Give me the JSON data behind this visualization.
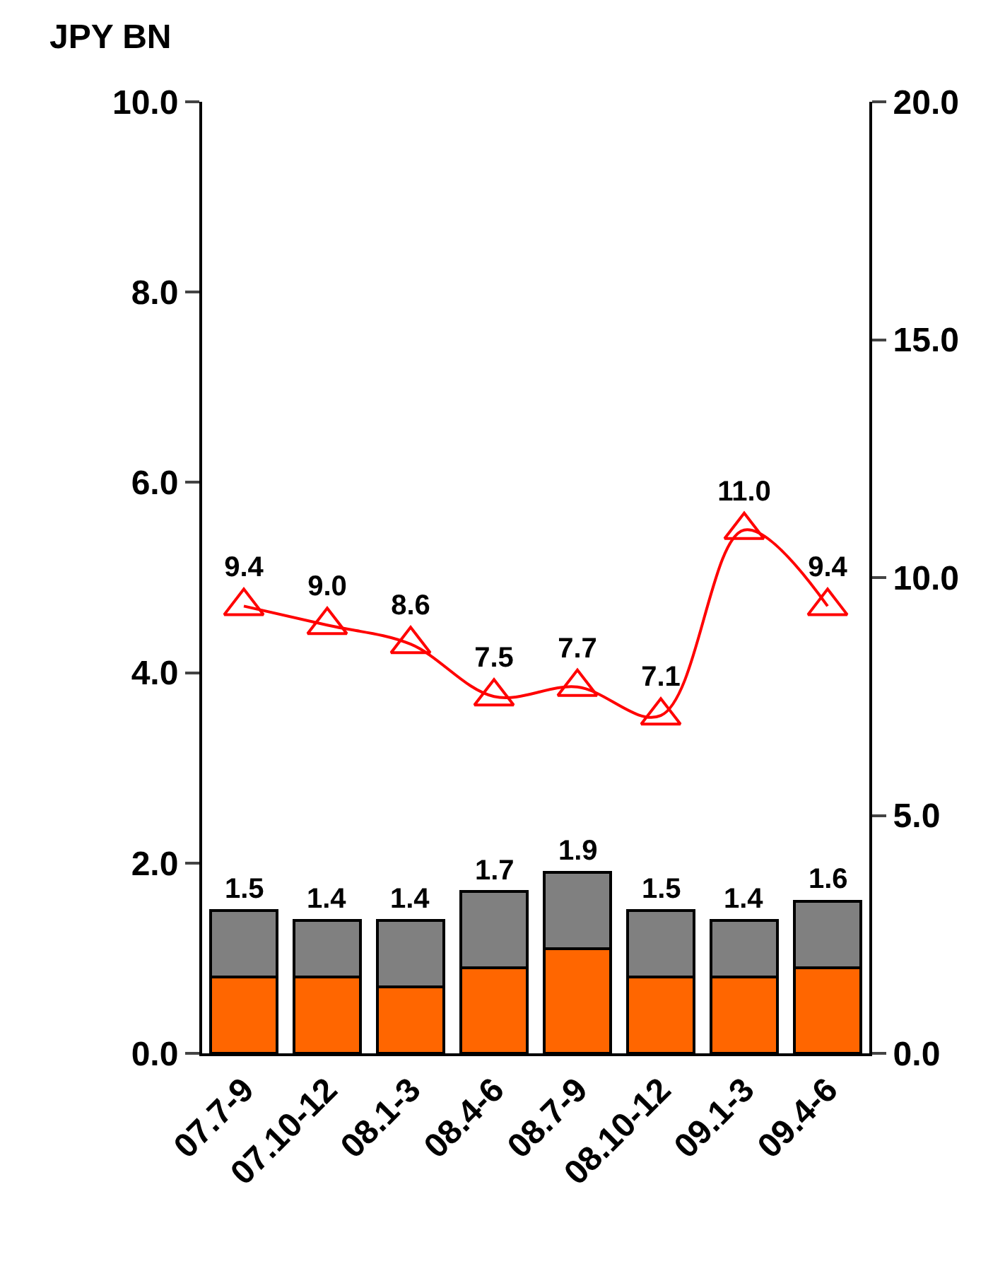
{
  "chart_data": {
    "type": "bar",
    "stacked": true,
    "ylabel": "JPY BN",
    "categories": [
      "07.7-9",
      "07.10-12",
      "08.1-3",
      "08.4-6",
      "08.7-9",
      "08.10-12",
      "09.1-3",
      "09.4-6"
    ],
    "series": [
      {
        "color": "#ff6600",
        "values": [
          0.8,
          0.8,
          0.7,
          0.9,
          1.1,
          0.8,
          0.8,
          0.9
        ]
      },
      {
        "color": "#808080",
        "values": [
          0.7,
          0.6,
          0.7,
          0.8,
          0.8,
          0.7,
          0.6,
          0.7
        ]
      },
      {
        "type": "line",
        "axis": "y2",
        "color": "#ff0000",
        "marker": "triangle",
        "values": [
          9.4,
          9.0,
          8.6,
          7.5,
          7.7,
          7.1,
          11.0,
          9.4
        ],
        "value_labels": [
          "9.4",
          "9.0",
          "8.6",
          "7.5",
          "7.7",
          "7.1",
          "11.0",
          "9.4"
        ]
      }
    ],
    "totals": [
      "1.5",
      "1.4",
      "1.4",
      "1.7",
      "1.9",
      "1.5",
      "1.4",
      "1.6"
    ],
    "ylim": [
      0,
      10
    ],
    "yticks": [
      {
        "value": 0,
        "label": "0.0"
      },
      {
        "value": 2,
        "label": "2.0"
      },
      {
        "value": 4,
        "label": "4.0"
      },
      {
        "value": 6,
        "label": "6.0"
      },
      {
        "value": 8,
        "label": "8.0"
      },
      {
        "value": 10,
        "label": "10.0"
      }
    ],
    "y2lim": [
      0,
      20
    ],
    "y2ticks": [
      {
        "value": 0,
        "label": "0.0"
      },
      {
        "value": 5,
        "label": "5.0"
      },
      {
        "value": 10,
        "label": "10.0"
      },
      {
        "value": 15,
        "label": "15.0"
      },
      {
        "value": 20,
        "label": "20.0"
      }
    ],
    "legend": false
  }
}
